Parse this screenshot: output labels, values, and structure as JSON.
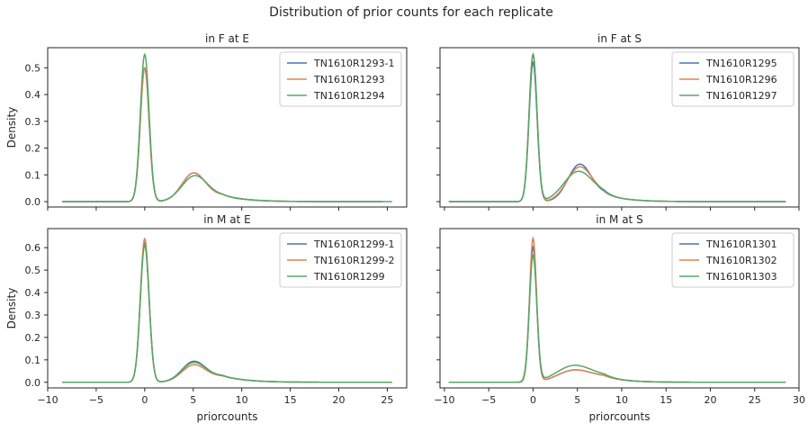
{
  "figure": {
    "title": "Distribution of prior counts for each replicate"
  },
  "colors": {
    "s1": "#4c72b0",
    "s2": "#dd8452",
    "s3": "#55a868"
  },
  "chart_data": [
    {
      "type": "line",
      "title": "in F at E",
      "xlabel": "",
      "ylabel": "Density",
      "xlim": [
        -10,
        27
      ],
      "ylim": [
        -0.02,
        0.575
      ],
      "xticks": [
        -10,
        -5,
        0,
        5,
        10,
        15,
        20,
        25
      ],
      "yticks": [
        0.0,
        0.1,
        0.2,
        0.3,
        0.4,
        0.5
      ],
      "show_xticklabels": false,
      "show_yticklabels": true,
      "legend": "top-right",
      "grid": false,
      "series": [
        {
          "name": "TN1610R1293-1",
          "peak0": 0.5,
          "sigma0": 0.45,
          "peak2": 0.1,
          "mu2": 5.0,
          "sigma2": 1.2,
          "tail": 0.03,
          "xmin": -8.5,
          "xmax": 24.5
        },
        {
          "name": "TN1610R1293",
          "peak0": 0.5,
          "sigma0": 0.45,
          "peak2": 0.1,
          "mu2": 5.0,
          "sigma2": 1.2,
          "tail": 0.03,
          "xmin": -8.5,
          "xmax": 24.5
        },
        {
          "name": "TN1610R1294",
          "peak0": 0.55,
          "sigma0": 0.45,
          "peak2": 0.09,
          "mu2": 5.1,
          "sigma2": 1.3,
          "tail": 0.027,
          "xmin": -8.5,
          "xmax": 25.5
        }
      ]
    },
    {
      "type": "line",
      "title": "in F at S",
      "xlabel": "",
      "ylabel": "",
      "xlim": [
        -10.5,
        30
      ],
      "ylim": [
        -0.02,
        0.575
      ],
      "xticks": [
        -10,
        -5,
        0,
        5,
        10,
        15,
        20,
        25,
        30
      ],
      "yticks": [
        0.0,
        0.1,
        0.2,
        0.3,
        0.4,
        0.5
      ],
      "show_xticklabels": false,
      "show_yticklabels": false,
      "legend": "top-right",
      "grid": false,
      "series": [
        {
          "name": "TN1610R1295",
          "peak0": 0.52,
          "sigma0": 0.45,
          "peak2": 0.13,
          "mu2": 5.2,
          "sigma2": 1.3,
          "tail": 0.035,
          "xmin": -9.5,
          "xmax": 28.5
        },
        {
          "name": "TN1610R1296",
          "peak0": 0.55,
          "sigma0": 0.45,
          "peak2": 0.12,
          "mu2": 5.2,
          "sigma2": 1.4,
          "tail": 0.035,
          "xmin": -9.5,
          "xmax": 28.5
        },
        {
          "name": "TN1610R1297",
          "peak0": 0.55,
          "sigma0": 0.45,
          "peak2": 0.105,
          "mu2": 5.0,
          "sigma2": 1.6,
          "tail": 0.033,
          "xmin": -9.5,
          "xmax": 28.5
        }
      ]
    },
    {
      "type": "line",
      "title": "in M at E",
      "xlabel": "priorcounts",
      "ylabel": "Density",
      "xlim": [
        -10,
        27
      ],
      "ylim": [
        -0.025,
        0.685
      ],
      "xticks": [
        -10,
        -5,
        0,
        5,
        10,
        15,
        20,
        25
      ],
      "yticks": [
        0.0,
        0.1,
        0.2,
        0.3,
        0.4,
        0.5,
        0.6
      ],
      "show_xticklabels": true,
      "show_yticklabels": true,
      "legend": "top-right",
      "grid": false,
      "series": [
        {
          "name": "TN1610R1299-1",
          "peak0": 0.62,
          "sigma0": 0.45,
          "peak2": 0.085,
          "mu2": 5.0,
          "sigma2": 1.2,
          "tail": 0.035,
          "xmin": -8.5,
          "xmax": 25.5
        },
        {
          "name": "TN1610R1299-2",
          "peak0": 0.64,
          "sigma0": 0.45,
          "peak2": 0.07,
          "mu2": 5.0,
          "sigma2": 1.2,
          "tail": 0.033,
          "xmin": -8.5,
          "xmax": 25.5
        },
        {
          "name": "TN1610R1299",
          "peak0": 0.61,
          "sigma0": 0.45,
          "peak2": 0.08,
          "mu2": 5.0,
          "sigma2": 1.2,
          "tail": 0.035,
          "xmin": -8.5,
          "xmax": 25.5
        }
      ]
    },
    {
      "type": "line",
      "title": "in M at S",
      "xlabel": "priorcounts",
      "ylabel": "",
      "xlim": [
        -10.5,
        30
      ],
      "ylim": [
        -0.025,
        0.685
      ],
      "xticks": [
        -10,
        -5,
        0,
        5,
        10,
        15,
        20,
        25,
        30
      ],
      "yticks": [
        0.0,
        0.1,
        0.2,
        0.3,
        0.4,
        0.5,
        0.6
      ],
      "show_xticklabels": true,
      "show_yticklabels": false,
      "legend": "top-right",
      "grid": false,
      "series": [
        {
          "name": "TN1610R1301",
          "peak0": 0.6,
          "sigma0": 0.4,
          "peak2": 0.05,
          "mu2": 4.5,
          "sigma2": 1.8,
          "tail": 0.03,
          "xmin": -9.5,
          "xmax": 28.5
        },
        {
          "name": "TN1610R1302",
          "peak0": 0.64,
          "sigma0": 0.4,
          "peak2": 0.05,
          "mu2": 4.5,
          "sigma2": 1.8,
          "tail": 0.03,
          "xmin": -9.5,
          "xmax": 28.5
        },
        {
          "name": "TN1610R1303",
          "peak0": 0.56,
          "sigma0": 0.42,
          "peak2": 0.07,
          "mu2": 4.5,
          "sigma2": 1.9,
          "tail": 0.032,
          "xmin": -9.5,
          "xmax": 28.5
        }
      ]
    }
  ]
}
